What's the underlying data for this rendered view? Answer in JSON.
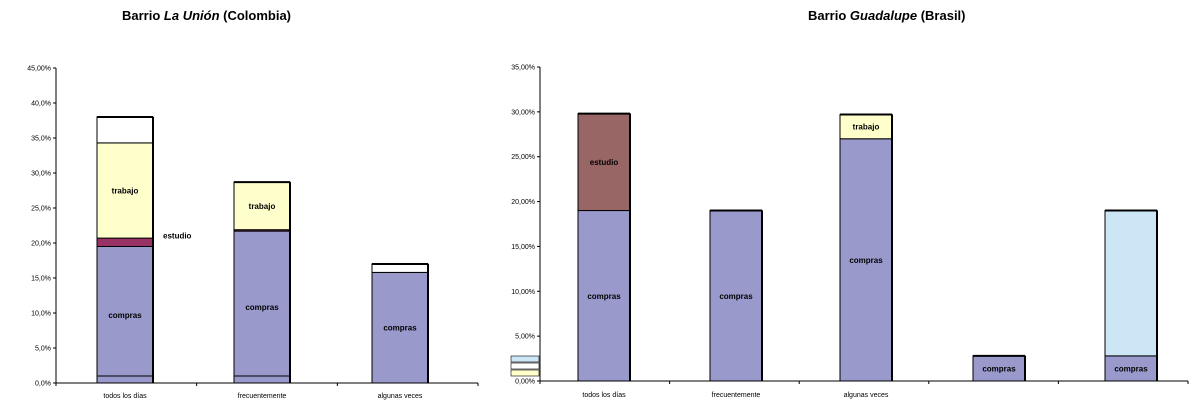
{
  "chart_data": [
    {
      "type": "bar",
      "stacked": true,
      "title": {
        "prefix": "Barrio ",
        "name": "La Unión",
        "suffix": " (Colombia)"
      },
      "ylim": [
        0,
        45
      ],
      "yticks": [
        "0,0%",
        "5,0%",
        "10,0%",
        "15,0%",
        "20,0%",
        "25,0%",
        "30,0%",
        "35,0%",
        "40,0%",
        "45,00%"
      ],
      "tick_values": [
        0,
        5,
        10,
        15,
        20,
        25,
        30,
        35,
        40,
        45
      ],
      "categories": [
        "todos los días",
        "frecuentemente",
        "algunas veces"
      ],
      "series": [
        {
          "name": "compras",
          "color": "#9999cc",
          "values": [
            19.5,
            21.7,
            15.8
          ]
        },
        {
          "name": "estudio",
          "color": "#993366",
          "values": [
            1.2,
            0.2,
            0
          ]
        },
        {
          "name": "trabajo",
          "color": "#ffffcc",
          "values": [
            13.6,
            6.8,
            0
          ]
        },
        {
          "name": "",
          "color": "#ffffff",
          "values": [
            3.7,
            0,
            1.2
          ]
        }
      ],
      "base_band": [
        1.0,
        1.0,
        0
      ],
      "labels": {
        "compras": "compras",
        "estudio": "estudio",
        "trabajo": "trabajo"
      }
    },
    {
      "type": "bar",
      "stacked": true,
      "title": {
        "prefix": "Barrio ",
        "name": "Guadalupe",
        "suffix": " (Brasil)"
      },
      "ylim": [
        0,
        35
      ],
      "yticks": [
        "0,00%",
        "5,00%",
        "10,00%",
        "15,00%",
        "20,00%",
        "25,00%",
        "30,00%",
        "35,00%"
      ],
      "tick_values": [
        0,
        5,
        10,
        15,
        20,
        25,
        30,
        35
      ],
      "categories": [
        "todos los días",
        "frecuentemente",
        "algunas veces",
        "",
        ""
      ],
      "series": [
        {
          "name": "compras",
          "color": "#9999cc",
          "values": [
            19.0,
            19.0,
            27.0,
            2.8,
            2.8
          ]
        },
        {
          "name": "estudio",
          "color": "#996666",
          "values": [
            10.8,
            0,
            0,
            0,
            0
          ]
        },
        {
          "name": "trabajo",
          "color": "#ffffcc",
          "values": [
            0,
            0,
            2.7,
            0,
            0
          ]
        },
        {
          "name": "",
          "color": "#cce6f5",
          "values": [
            0,
            0,
            0,
            0,
            16.2
          ]
        }
      ],
      "labels": {
        "compras": "compras",
        "estudio": "estudio",
        "trabajo": "trabajo"
      }
    }
  ]
}
